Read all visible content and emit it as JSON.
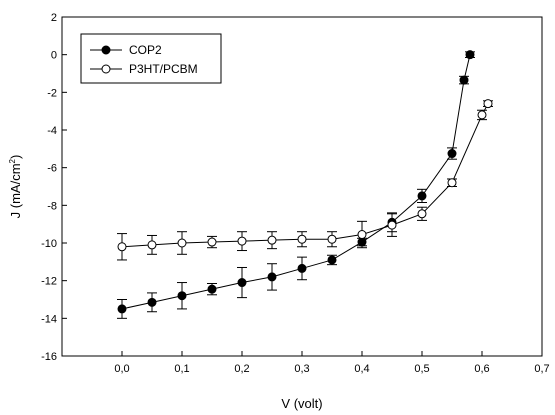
{
  "chart_data": {
    "type": "line",
    "xlabel": "V (volt)",
    "ylabel": "J (mA/cm²)",
    "ylabel_main": "J (mA/cm",
    "ylabel_sup": "2",
    "ylabel_end": ")",
    "xlim": [
      -0.1,
      0.7
    ],
    "ylim": [
      -16,
      2
    ],
    "xticks": [
      0.0,
      0.1,
      0.2,
      0.3,
      0.4,
      0.5,
      0.6,
      0.7
    ],
    "xtick_labels": [
      "0,0",
      "0,1",
      "0,2",
      "0,3",
      "0,4",
      "0,5",
      "0,6",
      "0,7"
    ],
    "yticks": [
      -16,
      -14,
      -12,
      -10,
      -8,
      -6,
      -4,
      -2,
      0,
      2
    ],
    "ytick_labels": [
      "-16",
      "-14",
      "-12",
      "-10",
      "-8",
      "-6",
      "-4",
      "-2",
      "0",
      "2"
    ],
    "grid": false,
    "legend_position": "top-left",
    "series": [
      {
        "name": "COP2",
        "marker": "filled-circle",
        "color": "#000000",
        "x": [
          0.0,
          0.05,
          0.1,
          0.15,
          0.2,
          0.25,
          0.3,
          0.35,
          0.4,
          0.45,
          0.5,
          0.55,
          0.57,
          0.58
        ],
        "y": [
          -13.5,
          -13.15,
          -12.8,
          -12.45,
          -12.1,
          -11.8,
          -11.35,
          -10.9,
          -9.95,
          -8.9,
          -7.5,
          -5.25,
          -1.35,
          0.0
        ],
        "err": [
          0.5,
          0.5,
          0.7,
          0.3,
          0.8,
          0.7,
          0.6,
          0.25,
          0.2,
          0.5,
          0.35,
          0.3,
          0.2,
          0.15
        ]
      },
      {
        "name": "P3HT/PCBM",
        "marker": "open-circle",
        "color": "#000000",
        "x": [
          0.0,
          0.05,
          0.1,
          0.15,
          0.2,
          0.25,
          0.3,
          0.35,
          0.4,
          0.45,
          0.5,
          0.55,
          0.6,
          0.61
        ],
        "y": [
          -10.2,
          -10.1,
          -10.0,
          -9.95,
          -9.9,
          -9.85,
          -9.8,
          -9.8,
          -9.55,
          -9.05,
          -8.45,
          -6.8,
          -3.2,
          -2.6
        ],
        "err": [
          0.7,
          0.5,
          0.6,
          0.3,
          0.5,
          0.45,
          0.4,
          0.4,
          0.7,
          0.6,
          0.35,
          0.2,
          0.25,
          0.15
        ]
      }
    ]
  }
}
